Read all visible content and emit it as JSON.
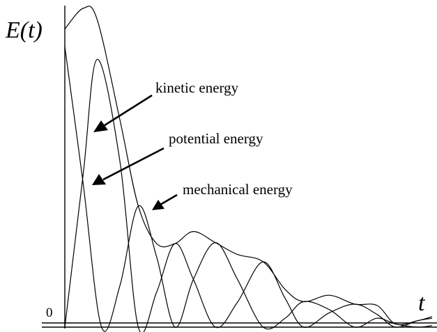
{
  "chart_data": {
    "type": "line",
    "title": "",
    "ylabel": "E(t)",
    "xlabel": "t",
    "yticks": [
      "0"
    ],
    "xlim": [
      0,
      10
    ],
    "ylim": [
      0,
      1
    ],
    "grid": false,
    "legend": "none",
    "annotations": [
      {
        "text": "kinetic energy",
        "target": "kinetic"
      },
      {
        "text": "potential energy",
        "target": "potential"
      },
      {
        "text": "mechanical energy",
        "target": "mechanical"
      }
    ],
    "series": [
      {
        "key": "kinetic",
        "x": [
          0.0,
          0.5,
          0.88,
          1.5,
          2.0,
          2.5,
          3.0,
          3.5,
          4.1,
          4.7,
          5.4,
          6.0,
          6.5,
          7.2,
          7.9,
          8.5,
          9.0,
          9.6,
          10.0
        ],
        "y": [
          0.0,
          0.48,
          0.84,
          0.52,
          0.0,
          0.11,
          0.262,
          0.15,
          0.0,
          0.078,
          0.205,
          0.09,
          0.0,
          0.045,
          0.072,
          0.04,
          0.0,
          0.02,
          0.028
        ]
      },
      {
        "key": "potential",
        "x": [
          0.0,
          0.5,
          1.0,
          1.5,
          2.0,
          2.5,
          3.0,
          3.5,
          4.1,
          4.7,
          5.4,
          6.0,
          6.5,
          7.2,
          7.9,
          8.5,
          9.0,
          9.6,
          10.0
        ],
        "y": [
          0.88,
          0.45,
          0.0,
          0.13,
          0.38,
          0.22,
          0.0,
          0.15,
          0.265,
          0.15,
          0.0,
          0.028,
          0.08,
          0.055,
          0.0,
          0.028,
          0.01,
          0.0,
          0.005
        ]
      },
      {
        "key": "mechanical",
        "x": [
          0.0,
          0.5,
          0.88,
          1.5,
          2.0,
          2.5,
          3.0,
          3.5,
          4.1,
          4.7,
          5.4,
          6.0,
          6.5,
          7.2,
          7.9,
          8.5,
          9.0,
          9.6,
          10.0
        ],
        "y": [
          0.935,
          1.0,
          0.965,
          0.65,
          0.38,
          0.262,
          0.262,
          0.3,
          0.265,
          0.228,
          0.205,
          0.118,
          0.08,
          0.1,
          0.072,
          0.068,
          0.01,
          0.02,
          0.033
        ]
      }
    ]
  }
}
